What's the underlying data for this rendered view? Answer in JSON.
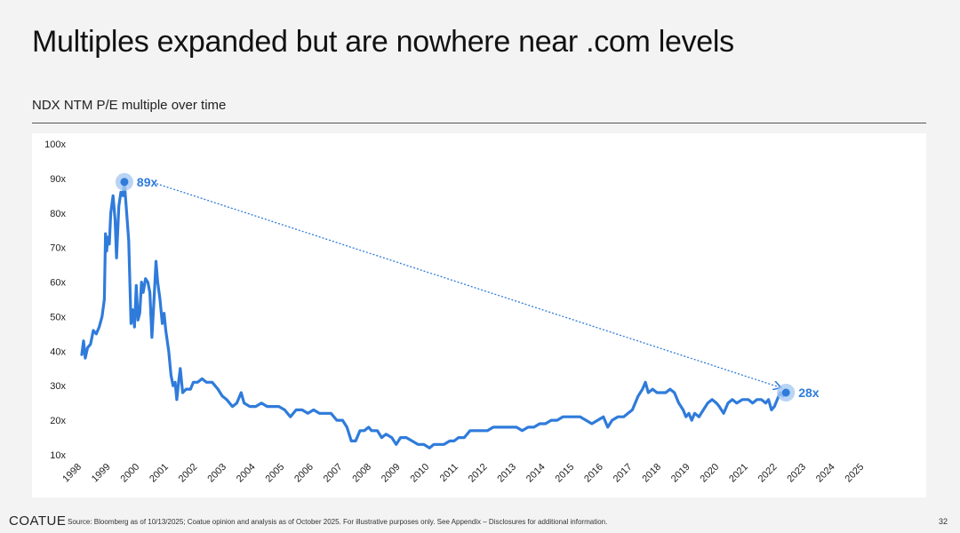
{
  "slide": {
    "title": "Multiples expanded but are nowhere near .com levels",
    "chart_heading": "NDX NTM P/E multiple over time",
    "footer_logo": "COATUE",
    "footer_source": "Source: Bloomberg as of 10/13/2025; Coatue opinion and analysis as of October 2025. For illustrative purposes only. See Appendix – Disclosures for additional information.",
    "page_number": "32"
  },
  "colors": {
    "line": "#2f7bdb",
    "highlight": "#a8c9f2",
    "axis_text": "#222222"
  },
  "chart_data": {
    "type": "line",
    "title": "NDX NTM P/E multiple over time",
    "xlabel": "",
    "ylabel": "",
    "xlim": [
      1998,
      2025.3
    ],
    "ylim": [
      10,
      100
    ],
    "grid": false,
    "legend": "none",
    "y_ticks": [
      10,
      20,
      30,
      40,
      50,
      60,
      70,
      80,
      90,
      100
    ],
    "y_tick_labels": [
      "10x",
      "20x",
      "30x",
      "40x",
      "50x",
      "60x",
      "70x",
      "80x",
      "90x",
      "100x"
    ],
    "x_ticks": [
      1998,
      1999,
      2000,
      2001,
      2002,
      2003,
      2004,
      2005,
      2006,
      2007,
      2008,
      2009,
      2010,
      2011,
      2012,
      2013,
      2014,
      2015,
      2016,
      2017,
      2018,
      2019,
      2020,
      2021,
      2022,
      2023,
      2024,
      2025
    ],
    "x_tick_labels": [
      "1998",
      "1999",
      "2000",
      "2001",
      "2002",
      "2003",
      "2004",
      "2005",
      "2006",
      "2007",
      "2008",
      "2009",
      "2010",
      "2011",
      "2012",
      "2013",
      "2014",
      "2015",
      "2016",
      "2017",
      "2018",
      "2019",
      "2020",
      "2021",
      "2022",
      "2023",
      "2024",
      "2025"
    ],
    "series": [
      {
        "values": [
          [
            1998.0,
            39
          ],
          [
            1998.06,
            43
          ],
          [
            1998.12,
            38
          ],
          [
            1998.2,
            41
          ],
          [
            1998.3,
            42
          ],
          [
            1998.4,
            46
          ],
          [
            1998.5,
            45
          ],
          [
            1998.6,
            47
          ],
          [
            1998.7,
            50
          ],
          [
            1998.78,
            55
          ],
          [
            1998.82,
            74
          ],
          [
            1998.86,
            69
          ],
          [
            1998.9,
            73
          ],
          [
            1998.95,
            71
          ],
          [
            1999.0,
            80
          ],
          [
            1999.08,
            85
          ],
          [
            1999.15,
            78
          ],
          [
            1999.2,
            67
          ],
          [
            1999.28,
            82
          ],
          [
            1999.35,
            86
          ],
          [
            1999.42,
            85
          ],
          [
            1999.47,
            89
          ],
          [
            1999.55,
            80
          ],
          [
            1999.62,
            72
          ],
          [
            1999.7,
            48
          ],
          [
            1999.76,
            52
          ],
          [
            1999.82,
            47
          ],
          [
            1999.88,
            59
          ],
          [
            1999.94,
            49
          ],
          [
            2000.0,
            51
          ],
          [
            2000.06,
            60
          ],
          [
            2000.12,
            57
          ],
          [
            2000.2,
            61
          ],
          [
            2000.28,
            60
          ],
          [
            2000.35,
            57
          ],
          [
            2000.42,
            44
          ],
          [
            2000.5,
            56
          ],
          [
            2000.56,
            66
          ],
          [
            2000.62,
            60
          ],
          [
            2000.7,
            55
          ],
          [
            2000.78,
            48
          ],
          [
            2000.84,
            51
          ],
          [
            2000.9,
            46
          ],
          [
            2001.0,
            40
          ],
          [
            2001.08,
            33
          ],
          [
            2001.15,
            30
          ],
          [
            2001.22,
            31
          ],
          [
            2001.28,
            26
          ],
          [
            2001.34,
            31
          ],
          [
            2001.4,
            35
          ],
          [
            2001.48,
            28
          ],
          [
            2001.6,
            29
          ],
          [
            2001.75,
            29
          ],
          [
            2001.85,
            31
          ],
          [
            2002.0,
            31
          ],
          [
            2002.15,
            32
          ],
          [
            2002.3,
            31
          ],
          [
            2002.5,
            31
          ],
          [
            2002.7,
            29
          ],
          [
            2002.85,
            27
          ],
          [
            2003.0,
            26
          ],
          [
            2003.2,
            24
          ],
          [
            2003.35,
            25
          ],
          [
            2003.5,
            28
          ],
          [
            2003.6,
            25
          ],
          [
            2003.8,
            24
          ],
          [
            2004.0,
            24
          ],
          [
            2004.2,
            25
          ],
          [
            2004.4,
            24
          ],
          [
            2004.6,
            24
          ],
          [
            2004.8,
            24
          ],
          [
            2005.0,
            23
          ],
          [
            2005.2,
            21
          ],
          [
            2005.4,
            23
          ],
          [
            2005.6,
            23
          ],
          [
            2005.8,
            22
          ],
          [
            2006.0,
            23
          ],
          [
            2006.2,
            22
          ],
          [
            2006.4,
            22
          ],
          [
            2006.6,
            22
          ],
          [
            2006.8,
            20
          ],
          [
            2007.0,
            20
          ],
          [
            2007.15,
            18
          ],
          [
            2007.3,
            14
          ],
          [
            2007.45,
            14
          ],
          [
            2007.6,
            17
          ],
          [
            2007.75,
            17
          ],
          [
            2007.9,
            18
          ],
          [
            2008.0,
            17
          ],
          [
            2008.2,
            17
          ],
          [
            2008.35,
            15
          ],
          [
            2008.5,
            16
          ],
          [
            2008.7,
            15
          ],
          [
            2008.85,
            13
          ],
          [
            2009.0,
            15
          ],
          [
            2009.2,
            15
          ],
          [
            2009.4,
            14
          ],
          [
            2009.6,
            13
          ],
          [
            2009.8,
            13
          ],
          [
            2010.0,
            12
          ],
          [
            2010.15,
            13
          ],
          [
            2010.3,
            13
          ],
          [
            2010.5,
            13
          ],
          [
            2010.7,
            14
          ],
          [
            2010.85,
            14
          ],
          [
            2011.0,
            15
          ],
          [
            2011.2,
            15
          ],
          [
            2011.4,
            17
          ],
          [
            2011.6,
            17
          ],
          [
            2011.8,
            17
          ],
          [
            2012.0,
            17
          ],
          [
            2012.2,
            18
          ],
          [
            2012.4,
            18
          ],
          [
            2012.6,
            18
          ],
          [
            2012.8,
            18
          ],
          [
            2013.0,
            18
          ],
          [
            2013.2,
            17
          ],
          [
            2013.4,
            18
          ],
          [
            2013.6,
            18
          ],
          [
            2013.8,
            19
          ],
          [
            2014.0,
            19
          ],
          [
            2014.2,
            20
          ],
          [
            2014.4,
            20
          ],
          [
            2014.6,
            21
          ],
          [
            2014.8,
            21
          ],
          [
            2015.0,
            21
          ],
          [
            2015.2,
            21
          ],
          [
            2015.4,
            20
          ],
          [
            2015.6,
            19
          ],
          [
            2015.8,
            20
          ],
          [
            2016.0,
            21
          ],
          [
            2016.15,
            18
          ],
          [
            2016.3,
            20
          ],
          [
            2016.5,
            21
          ],
          [
            2016.7,
            21
          ],
          [
            2016.85,
            22
          ],
          [
            2017.0,
            23
          ],
          [
            2017.2,
            27
          ],
          [
            2017.35,
            29
          ],
          [
            2017.45,
            31
          ],
          [
            2017.55,
            28
          ],
          [
            2017.7,
            29
          ],
          [
            2017.85,
            28
          ],
          [
            2018.0,
            28
          ],
          [
            2018.15,
            28
          ],
          [
            2018.3,
            29
          ],
          [
            2018.45,
            28
          ],
          [
            2018.6,
            25
          ],
          [
            2018.75,
            23
          ],
          [
            2018.85,
            21
          ],
          [
            2018.95,
            22
          ],
          [
            2019.05,
            20
          ],
          [
            2019.15,
            22
          ],
          [
            2019.3,
            21
          ],
          [
            2019.45,
            23
          ],
          [
            2019.6,
            25
          ],
          [
            2019.75,
            26
          ],
          [
            2019.9,
            25
          ],
          [
            2020.0,
            24
          ],
          [
            2020.15,
            22
          ],
          [
            2020.3,
            25
          ],
          [
            2020.45,
            26
          ],
          [
            2020.6,
            25
          ],
          [
            2020.8,
            26
          ],
          [
            2021.0,
            26
          ],
          [
            2021.15,
            25
          ],
          [
            2021.3,
            26
          ],
          [
            2021.45,
            26
          ],
          [
            2021.6,
            25
          ],
          [
            2021.7,
            26
          ],
          [
            2021.8,
            23
          ],
          [
            2021.9,
            24
          ],
          [
            2022.0,
            26
          ],
          [
            2022.1,
            28
          ],
          [
            2022.2,
            27
          ],
          [
            2022.3,
            28
          ]
        ]
      }
    ],
    "annotations": [
      {
        "label": "89x",
        "x": 1999.47,
        "y": 89
      },
      {
        "label": "28x",
        "x": 2022.3,
        "y": 28
      }
    ],
    "trend_arrow": {
      "from": [
        1999.6,
        88.5
      ],
      "to": [
        2022.1,
        29.5
      ]
    }
  }
}
